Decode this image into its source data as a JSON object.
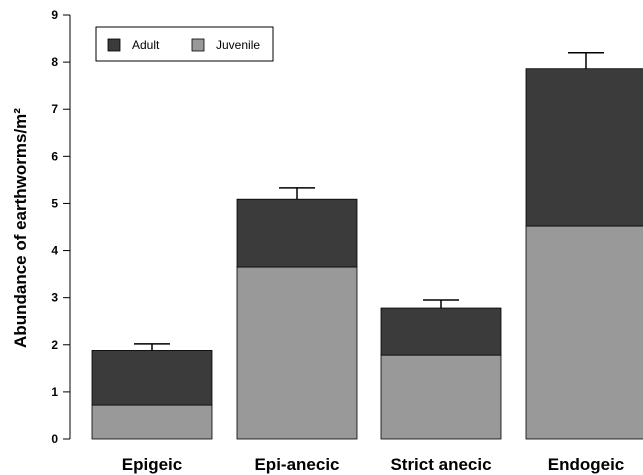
{
  "chart_data": {
    "type": "bar",
    "stacked": true,
    "categories": [
      "Epigeic",
      "Epi-anecic",
      "Strict anecic",
      "Endogeic"
    ],
    "series": [
      {
        "name": "Juvenile",
        "values": [
          0.72,
          3.65,
          1.78,
          4.52
        ],
        "color": "#999999"
      },
      {
        "name": "Adult",
        "values": [
          1.16,
          1.44,
          1.0,
          3.34
        ],
        "color": "#3b3b3b"
      }
    ],
    "error_bar_tops": [
      2.02,
      5.33,
      2.95,
      8.2
    ],
    "ylim": [
      0,
      9
    ],
    "yticks": [
      "0",
      "1",
      "2",
      "3",
      "4",
      "5",
      "6",
      "7",
      "8",
      "9"
    ],
    "xlabel": "",
    "ylabel": "Abundance of earthworms/m²",
    "legend": {
      "placement": "top-left",
      "entries": [
        {
          "label": "Adult",
          "color": "#3b3b3b"
        },
        {
          "label": "Juvenile",
          "color": "#999999"
        }
      ]
    },
    "grid": false
  }
}
